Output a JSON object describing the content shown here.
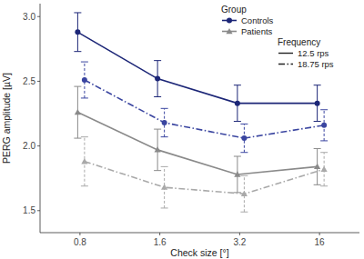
{
  "chart_data": {
    "type": "line",
    "x_label": "Check size [°]",
    "y_label": "PERG amplitude [µV]",
    "categories": [
      "0.8",
      "1.6",
      "3.2",
      "16"
    ],
    "ylim": [
      1.33,
      3.1
    ],
    "yticks": [
      {
        "value": 1.5,
        "label": "1.5"
      },
      {
        "value": 2.0,
        "label": "2.0"
      },
      {
        "value": 2.5,
        "label": "2.5"
      },
      {
        "value": 3.0,
        "label": "3.0"
      }
    ],
    "grid": false,
    "legend": "top-right",
    "legend_sections": [
      {
        "title": "Group",
        "entries": [
          "Controls",
          "Patients"
        ]
      },
      {
        "title": "Frequency",
        "entries": [
          "12.5 rps",
          "18.75 rps"
        ]
      }
    ],
    "series": [
      {
        "group": "Controls",
        "frequency": "12.5 rps",
        "color": "#1c2677",
        "marker": "circle",
        "line_style": "solid",
        "values": [
          2.88,
          2.52,
          2.33,
          2.33
        ],
        "errors": [
          0.15,
          0.14,
          0.14,
          0.14
        ]
      },
      {
        "group": "Controls",
        "frequency": "18.75 rps",
        "color": "#3a45a0",
        "marker": "circle",
        "line_style": "dashdot",
        "values": [
          2.51,
          2.18,
          2.06,
          2.16
        ],
        "errors": [
          0.14,
          0.11,
          0.11,
          0.12
        ]
      },
      {
        "group": "Patients",
        "frequency": "12.5 rps",
        "color": "#8a8a8a",
        "marker": "triangle",
        "line_style": "solid",
        "values": [
          2.26,
          1.97,
          1.78,
          1.84
        ],
        "errors": [
          0.2,
          0.16,
          0.14,
          0.14
        ]
      },
      {
        "group": "Patients",
        "frequency": "18.75 rps",
        "color": "#a9a9a9",
        "marker": "triangle",
        "line_style": "dashdot",
        "values": [
          1.88,
          1.68,
          1.63,
          1.82
        ],
        "errors": [
          0.19,
          0.16,
          0.14,
          0.13
        ]
      }
    ]
  }
}
